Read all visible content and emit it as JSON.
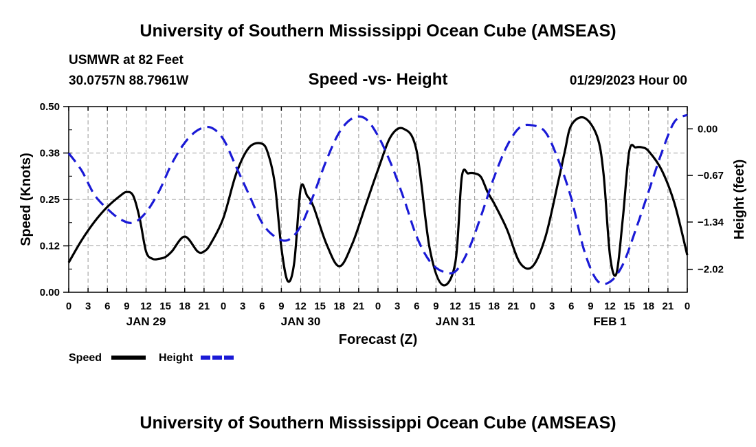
{
  "header": {
    "title": "University of Southern Mississippi Ocean Cube (AMSEAS)",
    "station": "USMWR at 82 Feet",
    "coords": "30.0757N  88.7961W",
    "subtitle": "Speed -vs- Height",
    "datetime": "01/29/2023 Hour 00",
    "footer_title": "University of Southern Mississippi Ocean Cube (AMSEAS)"
  },
  "colors": {
    "speed": "#000000",
    "height": "#1a1ad6",
    "grid": "#999999"
  },
  "chart_data": {
    "type": "line",
    "title": "Speed -vs- Height",
    "xlabel": "Forecast (Z)",
    "ylabel": "Speed (Knots)",
    "y2label": "Height (feet)",
    "xlim": [
      0,
      96
    ],
    "ylim": [
      0,
      0.5
    ],
    "y2lim": [
      -2.35,
      0.32
    ],
    "grid": true,
    "legend_position": "bottom-left",
    "x_tick_labels": [
      "0",
      "3",
      "6",
      "9",
      "12",
      "15",
      "18",
      "21",
      "0",
      "3",
      "6",
      "9",
      "12",
      "15",
      "18",
      "21",
      "0",
      "3",
      "6",
      "9",
      "12",
      "15",
      "18",
      "21",
      "0",
      "3",
      "6",
      "9",
      "12",
      "15",
      "18",
      "21",
      "0"
    ],
    "date_labels": [
      {
        "label": "JAN 29",
        "x": 12
      },
      {
        "label": "JAN 30",
        "x": 36
      },
      {
        "label": "JAN 31",
        "x": 60
      },
      {
        "label": "FEB 1",
        "x": 84
      }
    ],
    "y_ticks": [
      {
        "value": 0.0,
        "label": "0.00"
      },
      {
        "value": 0.125,
        "label": "0.12"
      },
      {
        "value": 0.25,
        "label": "0.25"
      },
      {
        "value": 0.375,
        "label": "0.38"
      },
      {
        "value": 0.5,
        "label": "0.50"
      }
    ],
    "y2_ticks": [
      {
        "value": 0.0,
        "label": "0.00"
      },
      {
        "value": -0.67,
        "label": "−0.67"
      },
      {
        "value": -1.34,
        "label": "−1.34"
      },
      {
        "value": -2.02,
        "label": "−2.02"
      }
    ],
    "series": [
      {
        "name": "Speed",
        "axis": "left",
        "style": "solid",
        "x": [
          0,
          2,
          4,
          6,
          8,
          9,
          10,
          11,
          12,
          13,
          14,
          15,
          16,
          18,
          20,
          21,
          22,
          24,
          26,
          28,
          30,
          31,
          32,
          33,
          34,
          35,
          36,
          37,
          38,
          40,
          42,
          44,
          46,
          48,
          50,
          52,
          54,
          56,
          58,
          60,
          61,
          62,
          63,
          64,
          65,
          66,
          68,
          70,
          72,
          74,
          76,
          77,
          78,
          80,
          82,
          83,
          84,
          85,
          86,
          87,
          88,
          89,
          90,
          92,
          94,
          96
        ],
        "y": [
          0.08,
          0.14,
          0.19,
          0.23,
          0.26,
          0.27,
          0.26,
          0.2,
          0.11,
          0.09,
          0.09,
          0.095,
          0.11,
          0.15,
          0.11,
          0.11,
          0.13,
          0.2,
          0.32,
          0.39,
          0.4,
          0.37,
          0.29,
          0.12,
          0.03,
          0.08,
          0.28,
          0.26,
          0.23,
          0.13,
          0.07,
          0.13,
          0.23,
          0.33,
          0.42,
          0.44,
          0.38,
          0.12,
          0.02,
          0.08,
          0.31,
          0.32,
          0.32,
          0.31,
          0.27,
          0.24,
          0.17,
          0.08,
          0.07,
          0.15,
          0.3,
          0.38,
          0.45,
          0.47,
          0.42,
          0.32,
          0.1,
          0.05,
          0.2,
          0.38,
          0.39,
          0.39,
          0.38,
          0.33,
          0.24,
          0.1
        ]
      },
      {
        "name": "Height",
        "axis": "right",
        "style": "dashed",
        "x": [
          0,
          2,
          4,
          6,
          8,
          10,
          12,
          14,
          16,
          18,
          20,
          22,
          24,
          26,
          28,
          30,
          32,
          34,
          36,
          38,
          40,
          42,
          44,
          46,
          48,
          50,
          52,
          54,
          56,
          58,
          60,
          62,
          64,
          66,
          68,
          70,
          72,
          74,
          76,
          78,
          80,
          82,
          84,
          86,
          88,
          90,
          92,
          94,
          96
        ],
        "y": [
          -0.35,
          -0.6,
          -0.95,
          -1.15,
          -1.3,
          -1.35,
          -1.2,
          -0.9,
          -0.5,
          -0.2,
          -0.02,
          0.02,
          -0.15,
          -0.55,
          -0.95,
          -1.35,
          -1.55,
          -1.6,
          -1.4,
          -0.95,
          -0.45,
          -0.05,
          0.15,
          0.15,
          -0.1,
          -0.5,
          -1.0,
          -1.55,
          -1.9,
          -2.05,
          -2.05,
          -1.75,
          -1.25,
          -0.7,
          -0.25,
          0.02,
          0.05,
          -0.05,
          -0.45,
          -1.0,
          -1.75,
          -2.18,
          -2.2,
          -1.95,
          -1.45,
          -0.9,
          -0.35,
          0.1,
          0.2
        ]
      }
    ]
  }
}
